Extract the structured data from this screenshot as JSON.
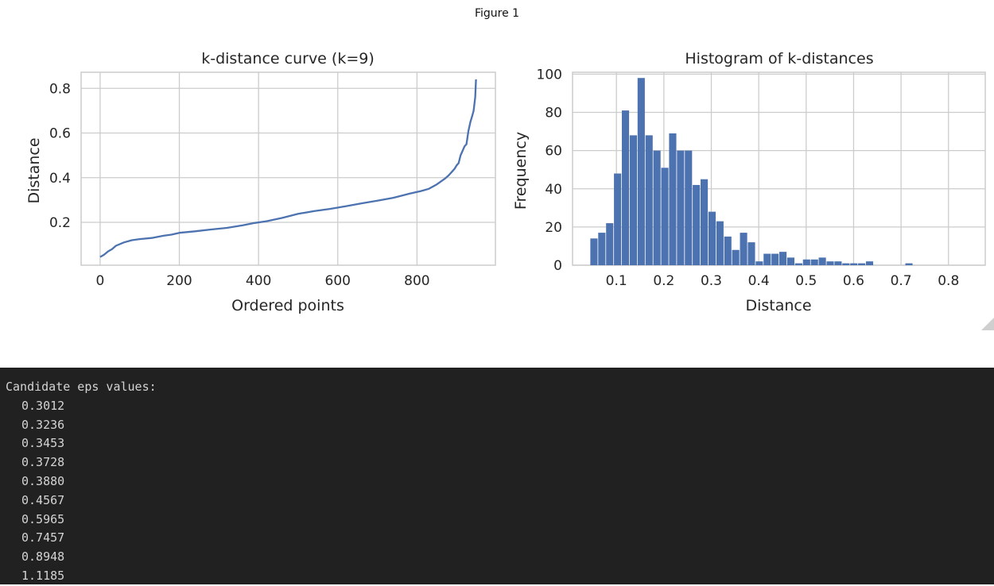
{
  "figure_window": {
    "title": "Figure 1"
  },
  "chart_data": [
    {
      "type": "line",
      "title": "k-distance curve (k=9)",
      "xlabel": "Ordered points",
      "ylabel": "Distance",
      "xlim": [
        -48,
        998
      ],
      "ylim": [
        0.008,
        0.872
      ],
      "xticks": [
        0,
        200,
        400,
        600,
        800
      ],
      "yticks": [
        0.2,
        0.4,
        0.6,
        0.8
      ],
      "xtick_labels": [
        "0",
        "200",
        "400",
        "600",
        "800"
      ],
      "ytick_labels": [
        "0.2",
        "0.4",
        "0.6",
        "0.8"
      ],
      "grid": true,
      "series": [
        {
          "color": "#4c72b0",
          "x": [
            0,
            5,
            10,
            20,
            30,
            40,
            60,
            80,
            100,
            130,
            160,
            180,
            200,
            240,
            280,
            320,
            360,
            390,
            420,
            460,
            500,
            540,
            580,
            620,
            660,
            700,
            740,
            780,
            810,
            830,
            850,
            870,
            880,
            890,
            895,
            900,
            905,
            910,
            915,
            920,
            925,
            930,
            935,
            940,
            943,
            945,
            947,
            948,
            949
          ],
          "y": [
            0.045,
            0.05,
            0.055,
            0.07,
            0.08,
            0.095,
            0.11,
            0.12,
            0.125,
            0.13,
            0.14,
            0.145,
            0.153,
            0.16,
            0.168,
            0.175,
            0.187,
            0.197,
            0.205,
            0.22,
            0.238,
            0.25,
            0.26,
            0.272,
            0.285,
            0.297,
            0.31,
            0.328,
            0.34,
            0.35,
            0.37,
            0.395,
            0.41,
            0.43,
            0.44,
            0.455,
            0.465,
            0.5,
            0.52,
            0.54,
            0.55,
            0.61,
            0.65,
            0.68,
            0.7,
            0.73,
            0.76,
            0.8,
            0.84
          ]
        }
      ]
    },
    {
      "type": "bar",
      "title": "Histogram of k-distances",
      "xlabel": "Distance",
      "ylabel": "Frequency",
      "xlim": [
        0.0075,
        0.8775
      ],
      "ylim": [
        0,
        101
      ],
      "xticks": [
        0.1,
        0.2,
        0.3,
        0.4,
        0.5,
        0.6,
        0.7,
        0.8
      ],
      "yticks": [
        0,
        20,
        40,
        60,
        80,
        100
      ],
      "xtick_labels": [
        "0.1",
        "0.2",
        "0.3",
        "0.4",
        "0.5",
        "0.6",
        "0.7",
        "0.8"
      ],
      "ytick_labels": [
        "0",
        "20",
        "40",
        "60",
        "80",
        "100"
      ],
      "grid": true,
      "bar_color": "#4c72b0",
      "bin_start": 0.045,
      "bin_width": 0.0166,
      "values": [
        14,
        17,
        22,
        48,
        81,
        68,
        98,
        68,
        60,
        51,
        69,
        60,
        60,
        42,
        45,
        28,
        23,
        15,
        8,
        17,
        12,
        2,
        6,
        6,
        7,
        4,
        1,
        3,
        3,
        4,
        2,
        2,
        1,
        1,
        1,
        2,
        0,
        0,
        0,
        0,
        1
      ]
    }
  ],
  "console": {
    "heading": "Candidate eps values:",
    "values": [
      "0.3012",
      "0.3236",
      "0.3453",
      "0.3728",
      "0.3880",
      "0.4567",
      "0.5965",
      "0.7457",
      "0.8948",
      "1.1185"
    ]
  }
}
